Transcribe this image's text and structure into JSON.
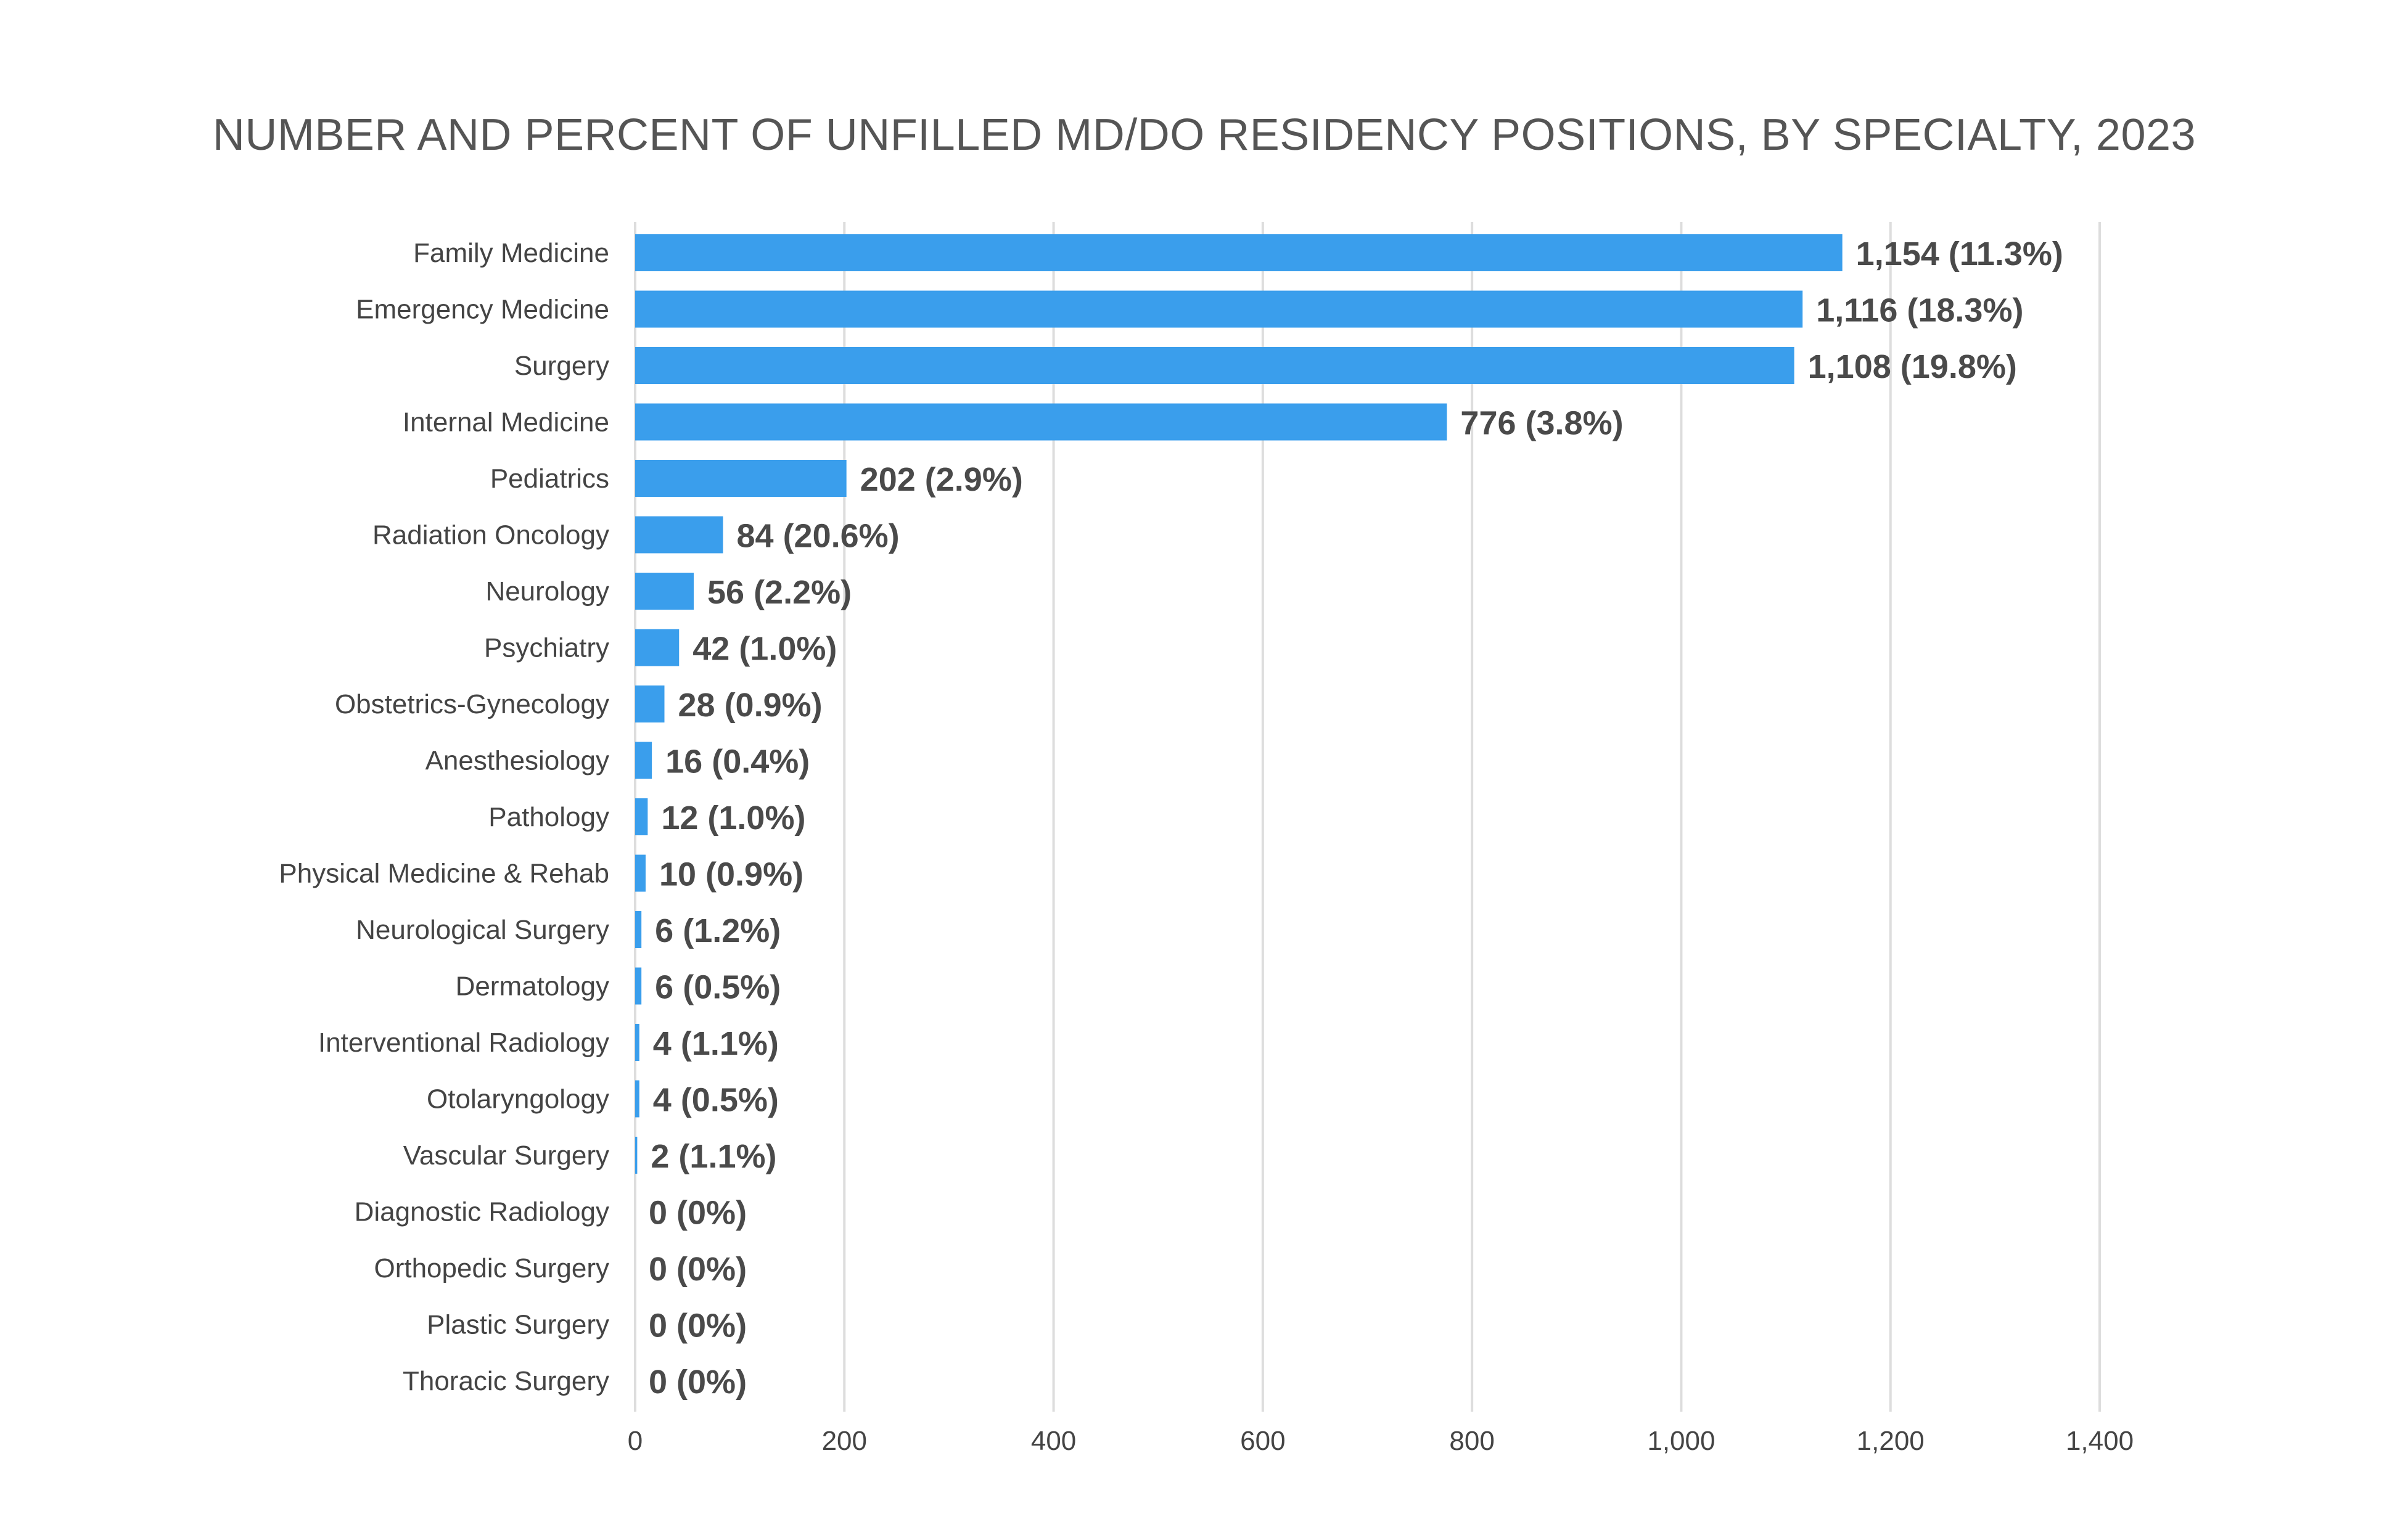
{
  "chart_data": {
    "type": "bar",
    "orientation": "horizontal",
    "title": "NUMBER AND PERCENT OF UNFILLED MD/DO RESIDENCY POSITIONS, BY SPECIALTY, 2023",
    "xlabel": "",
    "ylabel": "",
    "xlim": [
      0,
      1400
    ],
    "x_ticks": [
      0,
      200,
      400,
      600,
      800,
      1000,
      1200,
      1400
    ],
    "x_tick_labels": [
      "0",
      "200",
      "400",
      "600",
      "800",
      "1,000",
      "1,200",
      "1,400"
    ],
    "grid": true,
    "legend": "none",
    "bar_color": "#3a9eec",
    "categories": [
      "Family Medicine",
      "Emergency Medicine",
      "Surgery",
      "Internal Medicine",
      "Pediatrics",
      "Radiation Oncology",
      "Neurology",
      "Psychiatry",
      "Obstetrics-Gynecology",
      "Anesthesiology",
      "Pathology",
      "Physical Medicine & Rehab",
      "Neurological Surgery",
      "Dermatology",
      "Interventional Radiology",
      "Otolaryngology",
      "Vascular Surgery",
      "Diagnostic Radiology",
      "Orthopedic Surgery",
      "Plastic Surgery",
      "Thoracic Surgery"
    ],
    "values": [
      1154,
      1116,
      1108,
      776,
      202,
      84,
      56,
      42,
      28,
      16,
      12,
      10,
      6,
      6,
      4,
      4,
      2,
      0,
      0,
      0,
      0
    ],
    "percents": [
      11.3,
      18.3,
      19.8,
      3.8,
      2.9,
      20.6,
      2.2,
      1.0,
      0.9,
      0.4,
      1.0,
      0.9,
      1.2,
      0.5,
      1.1,
      0.5,
      1.1,
      0,
      0,
      0,
      0
    ],
    "data_labels": [
      "1,154 (11.3%)",
      "1,116 (18.3%)",
      "1,108 (19.8%)",
      "776 (3.8%)",
      "202 (2.9%)",
      "84 (20.6%)",
      "56 (2.2%)",
      "42 (1.0%)",
      "28 (0.9%)",
      "16 (0.4%)",
      "12 (1.0%)",
      "10 (0.9%)",
      "6 (1.2%)",
      "6 (0.5%)",
      "4 (1.1%)",
      "4 (0.5%)",
      "2 (1.1%)",
      "0 (0%)",
      "0 (0%)",
      "0 (0%)",
      "0 (0%)"
    ]
  }
}
